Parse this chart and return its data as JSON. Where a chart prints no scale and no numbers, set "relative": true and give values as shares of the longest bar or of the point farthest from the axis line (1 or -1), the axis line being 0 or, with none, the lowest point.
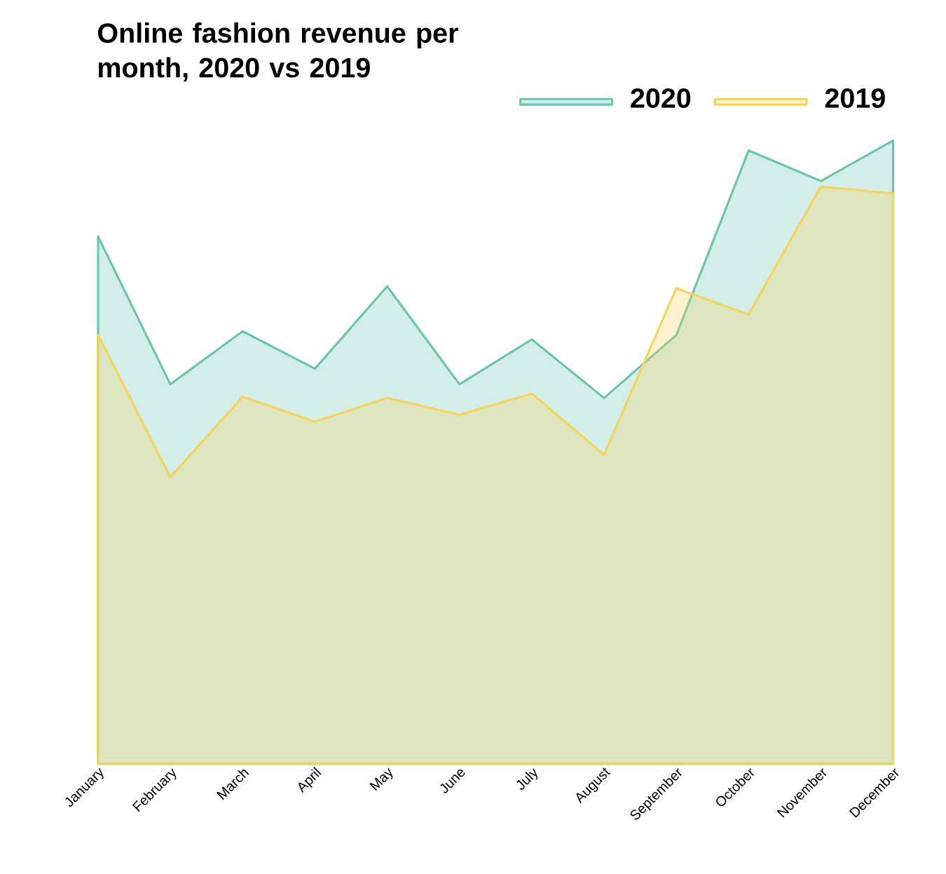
{
  "chart_data": {
    "type": "area",
    "title": "Online fashion revenue per month, 2020 vs 2019",
    "relative": true,
    "legend": "top right",
    "marker": "none",
    "categories": [
      "January",
      "February",
      "March",
      "April",
      "May",
      "June",
      "July",
      "August",
      "September",
      "October",
      "November",
      "December"
    ],
    "series": [
      {
        "name": "2020",
        "color": "#6cc3b4",
        "values": [
          0.846,
          0.609,
          0.694,
          0.634,
          0.766,
          0.609,
          0.681,
          0.587,
          0.688,
          0.984,
          0.935,
          1
        ]
      },
      {
        "name": "2019",
        "color": "#f5d35e",
        "values": [
          0.688,
          0.46,
          0.589,
          0.549,
          0.587,
          0.56,
          0.594,
          0.496,
          0.763,
          0.721,
          0.926,
          0.915
        ]
      }
    ]
  }
}
